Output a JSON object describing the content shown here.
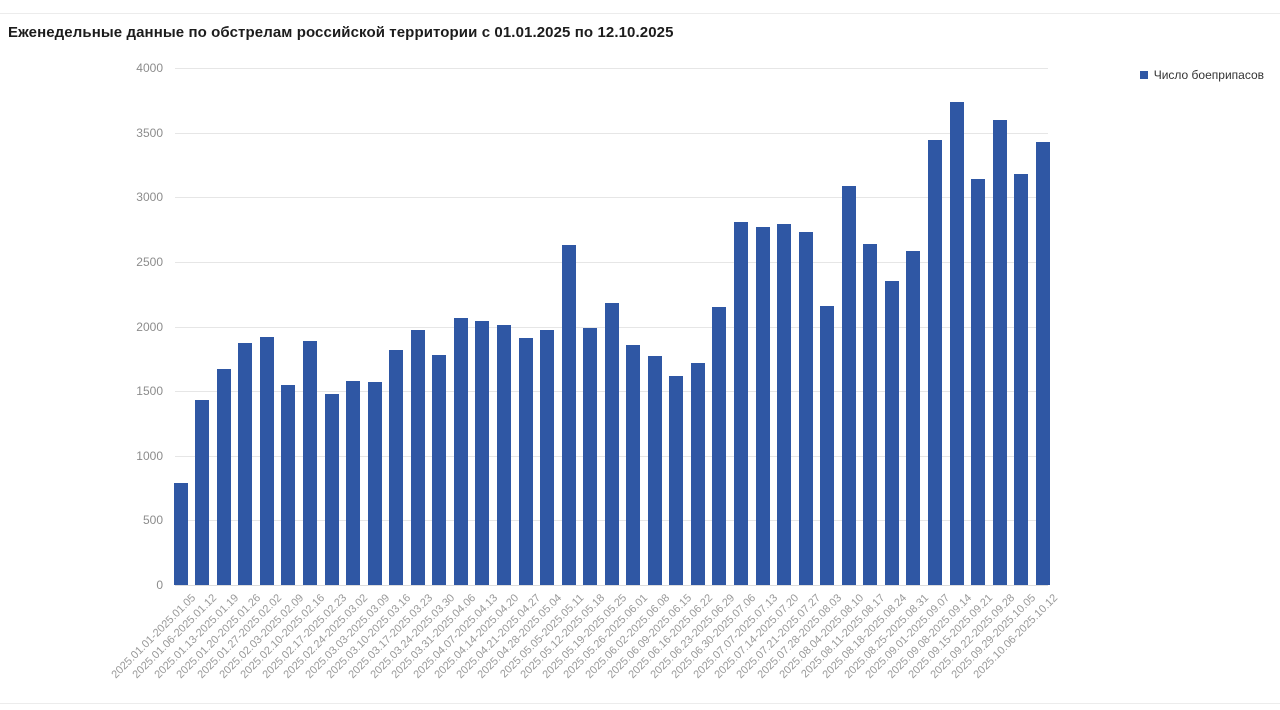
{
  "title": "Еженедельные данные по обстрелам российской территории с 01.01.2025 по 12.10.2025",
  "legend": {
    "label": "Число боеприпасов",
    "marker": "square-icon",
    "position": "top-right"
  },
  "colors": {
    "bar": "#2f57a4",
    "legend_marker": "#2f57a4",
    "grid": "#e6e6e6",
    "axis_baseline": "#dcdcdc",
    "y_tick_label": "#8c8c8c",
    "x_tick_label": "#999999",
    "title": "#1c1c1c",
    "legend_text": "#333333",
    "card_border": "#ececec",
    "background": "#ffffff"
  },
  "chart_data": {
    "type": "bar",
    "title": "Еженедельные данные по обстрелам российской территории с 01.01.2025 по 12.10.2025",
    "series_name": "Число боеприпасов",
    "xlabel": "",
    "ylabel": "",
    "ylim": [
      0,
      4000
    ],
    "yticks": [
      0,
      500,
      1000,
      1500,
      2000,
      2500,
      3000,
      3500,
      4000
    ],
    "grid": "horizontal",
    "legend_position": "top-right",
    "categories": [
      "2025.01.01-2025.01.05",
      "2025.01.06-2025.01.12",
      "2025.01.13-2025.01.19",
      "2025.01.20-2025.01.26",
      "2025.01.27-2025.02.02",
      "2025.02.03-2025.02.09",
      "2025.02.10-2025.02.16",
      "2025.02.17-2025.02.23",
      "2025.02.24-2025.03.02",
      "2025.03.03-2025.03.09",
      "2025.03.10-2025.03.16",
      "2025.03.17-2025.03.23",
      "2025.03.24-2025.03.30",
      "2025.03.31-2025.04.06",
      "2025.04.07-2025.04.13",
      "2025.04.14-2025.04.20",
      "2025.04.21-2025.04.27",
      "2025.04.28-2025.05.04",
      "2025.05.05-2025.05.11",
      "2025.05.12-2025.05.18",
      "2025.05.19-2025.05.25",
      "2025.05.26-2025.06.01",
      "2025.06.02-2025.06.08",
      "2025.06.09-2025.06.15",
      "2025.06.16-2025.06.22",
      "2025.06.23-2025.06.29",
      "2025.06.30-2025.07.06",
      "2025.07.07-2025.07.13",
      "2025.07.14-2025.07.20",
      "2025.07.21-2025.07.27",
      "2025.07.28-2025.08.03",
      "2025.08.04-2025.08.10",
      "2025.08.11-2025.08.17",
      "2025.08.18-2025.08.24",
      "2025.08.25-2025.08.31",
      "2025.09.01-2025.09.07",
      "2025.09.08-2025.09.14",
      "2025.09.15-2025.09.21",
      "2025.09.22-2025.09.28",
      "2025.09.29-2025.10.05",
      "2025.10.06-2025.10.12"
    ],
    "values": [
      790,
      1435,
      1675,
      1875,
      1920,
      1550,
      1890,
      1480,
      1580,
      1570,
      1820,
      1975,
      1780,
      2065,
      2045,
      2010,
      1915,
      1975,
      2630,
      1990,
      2185,
      1860,
      1770,
      1620,
      1720,
      2150,
      2805,
      2770,
      2795,
      2735,
      2160,
      3090,
      2640,
      2350,
      2585,
      3440,
      3735,
      3140,
      3595,
      3180,
      3425
    ]
  }
}
